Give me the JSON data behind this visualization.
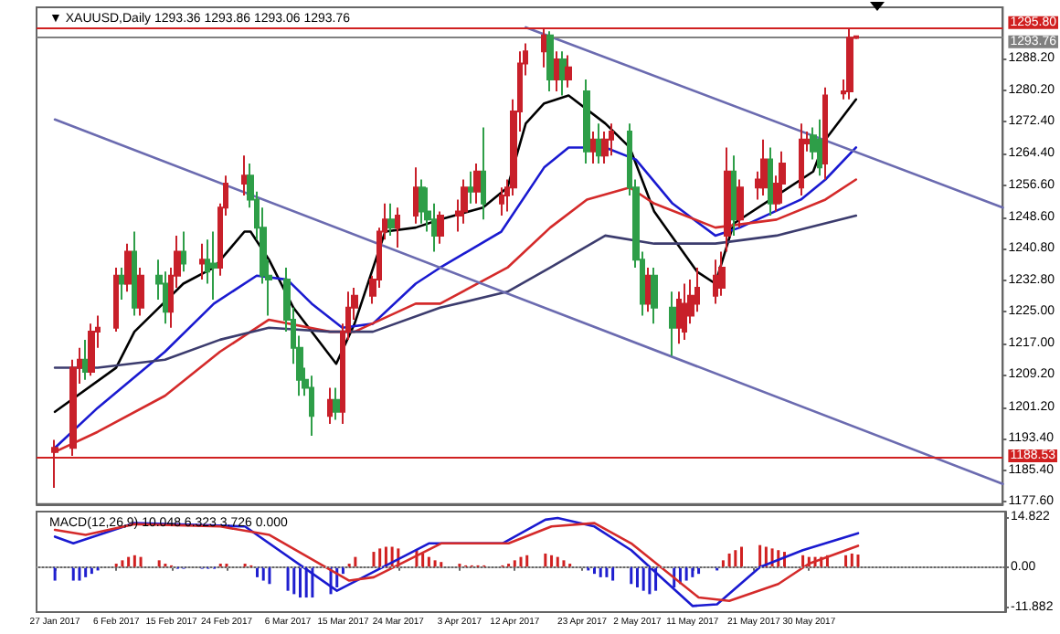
{
  "chart_data": [
    {
      "type": "candlestick",
      "title": "▼ XAUUSD,Daily 1293.36 1293.86 1293.06 1293.76",
      "tick_labels": "y",
      "x": [
        "2017-01-27",
        "2017-01-30",
        "2017-01-31",
        "2017-02-01",
        "2017-02-02",
        "2017-02-03",
        "2017-02-06",
        "2017-02-07",
        "2017-02-08",
        "2017-02-09",
        "2017-02-10",
        "2017-02-13",
        "2017-02-14",
        "2017-02-15",
        "2017-02-16",
        "2017-02-17",
        "2017-02-20",
        "2017-02-21",
        "2017-02-22",
        "2017-02-23",
        "2017-02-24",
        "2017-02-27",
        "2017-02-28",
        "2017-03-01",
        "2017-03-02",
        "2017-03-03",
        "2017-03-06",
        "2017-03-07",
        "2017-03-08",
        "2017-03-09",
        "2017-03-10",
        "2017-03-13",
        "2017-03-14",
        "2017-03-15",
        "2017-03-16",
        "2017-03-17",
        "2017-03-20",
        "2017-03-21",
        "2017-03-22",
        "2017-03-23",
        "2017-03-24",
        "2017-03-27",
        "2017-03-28",
        "2017-03-29",
        "2017-03-30",
        "2017-03-31",
        "2017-04-03",
        "2017-04-04",
        "2017-04-05",
        "2017-04-06",
        "2017-04-07",
        "2017-04-10",
        "2017-04-11",
        "2017-04-12",
        "2017-04-13",
        "2017-04-14",
        "2017-04-17",
        "2017-04-18",
        "2017-04-19",
        "2017-04-20",
        "2017-04-21",
        "2017-04-24",
        "2017-04-25",
        "2017-04-26",
        "2017-04-27",
        "2017-04-28",
        "2017-05-01",
        "2017-05-02",
        "2017-05-03",
        "2017-05-04",
        "2017-05-05",
        "2017-05-08",
        "2017-05-09",
        "2017-05-10",
        "2017-05-11",
        "2017-05-12",
        "2017-05-15",
        "2017-05-16",
        "2017-05-17",
        "2017-05-18",
        "2017-05-19",
        "2017-05-22",
        "2017-05-23",
        "2017-05-24",
        "2017-05-25",
        "2017-05-26",
        "2017-05-29",
        "2017-05-30",
        "2017-05-31",
        "2017-06-01",
        "2017-06-02",
        "2017-06-05",
        "2017-06-06",
        "2017-06-07"
      ],
      "ohlc": [
        [
          1190,
          1193,
          1181,
          1191
        ],
        [
          1191,
          1213,
          1189,
          1211
        ],
        [
          1211,
          1216,
          1207,
          1213
        ],
        [
          1213,
          1218,
          1208,
          1210
        ],
        [
          1210,
          1222,
          1209,
          1220
        ],
        [
          1220,
          1224,
          1216,
          1221
        ],
        [
          1221,
          1236,
          1220,
          1234
        ],
        [
          1234,
          1236,
          1228,
          1232
        ],
        [
          1232,
          1242,
          1230,
          1240
        ],
        [
          1240,
          1245,
          1224,
          1226
        ],
        [
          1226,
          1236,
          1224,
          1234
        ],
        [
          1234,
          1238,
          1228,
          1232
        ],
        [
          1232,
          1235,
          1222,
          1225
        ],
        [
          1225,
          1236,
          1221,
          1234
        ],
        [
          1234,
          1244,
          1231,
          1240
        ],
        [
          1240,
          1245,
          1235,
          1237
        ],
        [
          1237,
          1242,
          1233,
          1238
        ],
        [
          1238,
          1243,
          1232,
          1235
        ],
        [
          1237,
          1245,
          1228,
          1236
        ],
        [
          1236,
          1252,
          1234,
          1251
        ],
        [
          1251,
          1259,
          1249,
          1257
        ],
        [
          1257,
          1264,
          1254,
          1259
        ],
        [
          1259,
          1262,
          1251,
          1253
        ],
        [
          1253,
          1255,
          1243,
          1246
        ],
        [
          1246,
          1251,
          1232,
          1234
        ],
        [
          1234,
          1238,
          1224,
          1233
        ],
        [
          1233,
          1236,
          1220,
          1223
        ],
        [
          1223,
          1226,
          1212,
          1216
        ],
        [
          1216,
          1219,
          1204,
          1208
        ],
        [
          1208,
          1211,
          1204,
          1206
        ],
        [
          1206,
          1209,
          1194,
          1199
        ],
        [
          1199,
          1206,
          1197,
          1203
        ],
        [
          1203,
          1206,
          1198,
          1200
        ],
        [
          1200,
          1222,
          1197,
          1220
        ],
        [
          1220,
          1230,
          1218,
          1226
        ],
        [
          1226,
          1231,
          1223,
          1229
        ],
        [
          1229,
          1234,
          1227,
          1233
        ],
        [
          1233,
          1246,
          1231,
          1245
        ],
        [
          1245,
          1252,
          1243,
          1248
        ],
        [
          1248,
          1252,
          1244,
          1246
        ],
        [
          1246,
          1251,
          1241,
          1249
        ],
        [
          1249,
          1261,
          1247,
          1256
        ],
        [
          1256,
          1258,
          1247,
          1250
        ],
        [
          1250,
          1256,
          1245,
          1248
        ],
        [
          1248,
          1252,
          1240,
          1244
        ],
        [
          1244,
          1250,
          1242,
          1249
        ],
        [
          1249,
          1253,
          1245,
          1250
        ],
        [
          1250,
          1258,
          1247,
          1256
        ],
        [
          1256,
          1260,
          1252,
          1255
        ],
        [
          1255,
          1262,
          1252,
          1260
        ],
        [
          1260,
          1271,
          1248,
          1252
        ],
        [
          1252,
          1256,
          1249,
          1254
        ],
        [
          1254,
          1258,
          1250,
          1256
        ],
        [
          1256,
          1278,
          1254,
          1275
        ],
        [
          1275,
          1290,
          1270,
          1287
        ],
        [
          1287,
          1292,
          1284,
          1290
        ],
        [
          1290,
          1295.8,
          1286,
          1294
        ],
        [
          1294,
          1295,
          1280,
          1283
        ],
        [
          1283,
          1290,
          1280,
          1288
        ],
        [
          1288,
          1290,
          1279,
          1283
        ],
        [
          1283,
          1289,
          1281,
          1286
        ],
        [
          1280,
          1283,
          1262,
          1265
        ],
        [
          1265,
          1270,
          1262,
          1268
        ],
        [
          1268,
          1272,
          1262,
          1264
        ],
        [
          1264,
          1270,
          1262,
          1268
        ],
        [
          1268,
          1272,
          1264,
          1270
        ],
        [
          1270,
          1272,
          1254,
          1256
        ],
        [
          1256,
          1258,
          1236,
          1238
        ],
        [
          1238,
          1240,
          1224,
          1227
        ],
        [
          1227,
          1236,
          1225,
          1234
        ],
        [
          1234,
          1236,
          1222,
          1226
        ],
        [
          1226,
          1230,
          1214,
          1221
        ],
        [
          1221,
          1230,
          1217,
          1228
        ],
        [
          1220,
          1232,
          1218,
          1227
        ],
        [
          1224,
          1233,
          1222,
          1229
        ],
        [
          1227,
          1236,
          1225,
          1231
        ],
        [
          1229,
          1238,
          1227,
          1234
        ],
        [
          1231,
          1240,
          1229,
          1236
        ],
        [
          1244,
          1266,
          1240,
          1260
        ],
        [
          1260,
          1264,
          1244,
          1248
        ],
        [
          1248,
          1258,
          1246,
          1256
        ],
        [
          1256,
          1260,
          1253,
          1258
        ],
        [
          1256,
          1268,
          1254,
          1263
        ],
        [
          1263,
          1266,
          1249,
          1252
        ],
        [
          1252,
          1259,
          1250,
          1257
        ],
        [
          1257,
          1265,
          1252,
          1262
        ],
        [
          1256,
          1272,
          1254,
          1268
        ],
        [
          1267,
          1270,
          1265,
          1268
        ],
        [
          1269,
          1271,
          1263,
          1265
        ],
        [
          1268,
          1273,
          1259,
          1261
        ],
        [
          1262,
          1281,
          1258,
          1279
        ],
        [
          1279.5,
          1283,
          1278,
          1280
        ],
        [
          1280,
          1295.8,
          1278,
          1293.4
        ],
        [
          1293.36,
          1293.86,
          1293.06,
          1293.76
        ]
      ],
      "colors": [
        "#c8202a",
        "#c8202a",
        "#c8202a",
        "#2e9e48",
        "#c8202a",
        "#c8202a",
        "#c8202a",
        "#2e9e48",
        "#c8202a",
        "#2e9e48",
        "#c8202a",
        "#2e9e48",
        "#2e9e48",
        "#c8202a",
        "#c8202a",
        "#2e9e48",
        "#c8202a",
        "#2e9e48",
        "#2e9e48",
        "#c8202a",
        "#c8202a",
        "#c8202a",
        "#2e9e48",
        "#2e9e48",
        "#2e9e48",
        "#2e9e48",
        "#2e9e48",
        "#2e9e48",
        "#2e9e48",
        "#2e9e48",
        "#2e9e48",
        "#c8202a",
        "#2e9e48",
        "#c8202a",
        "#c8202a",
        "#c8202a",
        "#c8202a",
        "#c8202a",
        "#c8202a",
        "#2e9e48",
        "#c8202a",
        "#c8202a",
        "#2e9e48",
        "#2e9e48",
        "#2e9e48",
        "#c8202a",
        "#c8202a",
        "#c8202a",
        "#2e9e48",
        "#c8202a",
        "#2e9e48",
        "#c8202a",
        "#c8202a",
        "#c8202a",
        "#c8202a",
        "#c8202a",
        "#c8202a",
        "#2e9e48",
        "#c8202a",
        "#2e9e48",
        "#c8202a",
        "#2e9e48",
        "#c8202a",
        "#2e9e48",
        "#c8202a",
        "#c8202a",
        "#2e9e48",
        "#2e9e48",
        "#2e9e48",
        "#c8202a",
        "#2e9e48",
        "#2e9e48",
        "#c8202a",
        "#c8202a",
        "#c8202a",
        "#c8202a",
        "#c8202a",
        "#c8202a",
        "#c8202a",
        "#2e9e48",
        "#c8202a",
        "#c8202a",
        "#c8202a",
        "#2e9e48",
        "#c8202a",
        "#c8202a",
        "#c8202a",
        "#c8202a",
        "#2e9e48",
        "#2e9e48",
        "#c8202a",
        "#c8202a",
        "#c8202a",
        "#c8202a"
      ],
      "series": [
        {
          "type": "line",
          "color": "#000000",
          "x": [
            "2017-01-27",
            "2017-02-06",
            "2017-02-09",
            "2017-02-13",
            "2017-02-17",
            "2017-02-22",
            "2017-02-27",
            "2017-02-28",
            "2017-03-03",
            "2017-03-07",
            "2017-03-14",
            "2017-03-17",
            "2017-03-22",
            "2017-03-27",
            "2017-03-31",
            "2017-04-07",
            "2017-04-11",
            "2017-04-14",
            "2017-04-17",
            "2017-04-21",
            "2017-04-27",
            "2017-05-01",
            "2017-05-05",
            "2017-05-12",
            "2017-05-15",
            "2017-05-18",
            "2017-05-25",
            "2017-05-31",
            "2017-06-02",
            "2017-06-07"
          ],
          "values": [
            1200,
            1211,
            1220,
            1226,
            1232,
            1236,
            1245,
            1245,
            1238,
            1226,
            1212,
            1222,
            1245,
            1246,
            1248,
            1251,
            1256,
            1272,
            1277,
            1279,
            1272,
            1266,
            1250,
            1235,
            1232,
            1247,
            1254,
            1260,
            1268,
            1278
          ]
        },
        {
          "type": "line",
          "color": "#1a1ad0",
          "x": [
            "2017-01-27",
            "2017-02-03",
            "2017-02-14",
            "2017-02-22",
            "2017-03-01",
            "2017-03-06",
            "2017-03-10",
            "2017-03-15",
            "2017-03-20",
            "2017-03-27",
            "2017-03-31",
            "2017-04-10",
            "2017-04-17",
            "2017-04-21",
            "2017-04-27",
            "2017-05-02",
            "2017-05-08",
            "2017-05-15",
            "2017-05-19",
            "2017-05-29",
            "2017-06-02",
            "2017-06-07"
          ],
          "values": [
            1191,
            1201,
            1215,
            1227,
            1234,
            1233,
            1227,
            1221,
            1222,
            1232,
            1236,
            1245,
            1261,
            1266,
            1266,
            1263,
            1252,
            1244,
            1246,
            1253,
            1258,
            1266
          ]
        },
        {
          "type": "line",
          "color": "#d42a2a",
          "x": [
            "2017-01-27",
            "2017-02-03",
            "2017-02-14",
            "2017-02-23",
            "2017-03-03",
            "2017-03-13",
            "2017-03-17",
            "2017-03-27",
            "2017-03-31",
            "2017-04-11",
            "2017-04-18",
            "2017-04-24",
            "2017-05-01",
            "2017-05-05",
            "2017-05-15",
            "2017-05-25",
            "2017-06-02",
            "2017-06-07"
          ],
          "values": [
            1190,
            1195,
            1204,
            1215,
            1223,
            1220,
            1220,
            1227,
            1227,
            1236,
            1246,
            1253,
            1256,
            1252,
            1246,
            1248,
            1253,
            1258
          ]
        },
        {
          "type": "line",
          "color": "#3c3c6e",
          "x": [
            "2017-01-27",
            "2017-02-03",
            "2017-02-14",
            "2017-02-23",
            "2017-03-03",
            "2017-03-13",
            "2017-03-20",
            "2017-03-31",
            "2017-04-11",
            "2017-04-18",
            "2017-04-27",
            "2017-05-05",
            "2017-05-15",
            "2017-05-25",
            "2017-06-07"
          ],
          "values": [
            1211,
            1211,
            1213,
            1218,
            1221,
            1220,
            1220,
            1226,
            1230,
            1236,
            1244,
            1242,
            1242,
            1244,
            1249
          ]
        },
        {
          "type": "line",
          "color": "#6b6bb0",
          "x": [
            "2017-01-27",
            "2017-07-01"
          ],
          "values": [
            1273,
            1182
          ]
        },
        {
          "type": "line",
          "color": "#6b6bb0",
          "x": [
            "2017-04-14",
            "2017-07-01"
          ],
          "values": [
            1296,
            1251
          ]
        }
      ],
      "xlim": [
        "2017-01-24",
        "2017-07-01"
      ],
      "ylim": [
        1177,
        1301
      ],
      "yticks": [
        {
          "value": 1177.6,
          "label": "1177.60"
        },
        {
          "value": 1185.4,
          "label": "1185.40"
        },
        {
          "value": 1193.4,
          "label": "1193.40"
        },
        {
          "value": 1201.2,
          "label": "1201.20"
        },
        {
          "value": 1209.2,
          "label": "1209.20"
        },
        {
          "value": 1217.0,
          "label": "1217.00"
        },
        {
          "value": 1225.0,
          "label": "1225.00"
        },
        {
          "value": 1232.8,
          "label": "1232.80"
        },
        {
          "value": 1240.8,
          "label": "1240.80"
        },
        {
          "value": 1248.6,
          "label": "1248.60"
        },
        {
          "value": 1256.6,
          "label": "1256.60"
        },
        {
          "value": 1264.4,
          "label": "1264.40"
        },
        {
          "value": 1272.4,
          "label": "1272.40"
        },
        {
          "value": 1280.2,
          "label": "1280.20"
        },
        {
          "value": 1288.2,
          "label": "1288.20"
        }
      ],
      "ref_lines": [
        {
          "axis": "y",
          "value": 1295.8,
          "label": "1295.80",
          "color": "#d02020"
        },
        {
          "axis": "y",
          "value": 1293.76,
          "label": "1293.76",
          "color": "#808080"
        },
        {
          "axis": "y",
          "value": 1188.53,
          "label": "1188.53",
          "color": "#d02020"
        }
      ]
    },
    {
      "type": "bar",
      "title": "MACD(12,26,9) 10.048 6.323 3.726 0.000",
      "x": [
        "2017-01-27",
        "2017-01-30",
        "2017-01-31",
        "2017-02-01",
        "2017-02-02",
        "2017-02-03",
        "2017-02-06",
        "2017-02-07",
        "2017-02-08",
        "2017-02-09",
        "2017-02-10",
        "2017-02-13",
        "2017-02-14",
        "2017-02-15",
        "2017-02-16",
        "2017-02-17",
        "2017-02-20",
        "2017-02-21",
        "2017-02-22",
        "2017-02-23",
        "2017-02-24",
        "2017-02-27",
        "2017-02-28",
        "2017-03-01",
        "2017-03-02",
        "2017-03-03",
        "2017-03-06",
        "2017-03-07",
        "2017-03-08",
        "2017-03-09",
        "2017-03-10",
        "2017-03-13",
        "2017-03-14",
        "2017-03-15",
        "2017-03-16",
        "2017-03-17",
        "2017-03-20",
        "2017-03-21",
        "2017-03-22",
        "2017-03-23",
        "2017-03-24",
        "2017-03-27",
        "2017-03-28",
        "2017-03-29",
        "2017-03-30",
        "2017-03-31",
        "2017-04-03",
        "2017-04-04",
        "2017-04-05",
        "2017-04-06",
        "2017-04-07",
        "2017-04-10",
        "2017-04-11",
        "2017-04-12",
        "2017-04-13",
        "2017-04-14",
        "2017-04-17",
        "2017-04-18",
        "2017-04-19",
        "2017-04-20",
        "2017-04-21",
        "2017-04-24",
        "2017-04-25",
        "2017-04-26",
        "2017-04-27",
        "2017-04-28",
        "2017-05-01",
        "2017-05-02",
        "2017-05-03",
        "2017-05-04",
        "2017-05-05",
        "2017-05-08",
        "2017-05-09",
        "2017-05-10",
        "2017-05-11",
        "2017-05-12",
        "2017-05-15",
        "2017-05-16",
        "2017-05-17",
        "2017-05-18",
        "2017-05-19",
        "2017-05-22",
        "2017-05-23",
        "2017-05-24",
        "2017-05-25",
        "2017-05-26",
        "2017-05-29",
        "2017-05-30",
        "2017-05-31",
        "2017-06-01",
        "2017-06-02",
        "2017-06-05",
        "2017-06-06",
        "2017-06-07"
      ],
      "values": [
        -4,
        -4,
        -4,
        -3,
        -2,
        -1,
        1,
        2,
        3,
        3.5,
        3,
        2,
        1,
        0.5,
        -0.5,
        -0.5,
        -0.5,
        -0.5,
        -0.5,
        1,
        1,
        1,
        0.5,
        -3,
        -4,
        -5,
        -7,
        -8,
        -9,
        -9,
        -9,
        -8,
        -6,
        -2,
        1,
        3,
        4.5,
        5.5,
        6,
        6,
        5.5,
        5,
        4,
        3,
        2,
        1.5,
        1,
        0.5,
        0.5,
        0.5,
        0.5,
        0.5,
        1,
        2,
        3,
        3.5,
        4,
        3.5,
        3,
        2,
        1,
        -1,
        -2,
        -3,
        -3,
        -4,
        -5,
        -6,
        -7,
        -8,
        -7,
        -6,
        -5,
        -4,
        -3,
        -2,
        -1,
        2,
        4,
        5,
        6,
        6.5,
        6,
        5.5,
        5,
        4.5,
        3.5,
        3,
        3,
        3,
        3.5,
        3.5,
        4,
        3.7
      ],
      "colors": [
        "#1f1fcf",
        "#1f1fcf",
        "#1f1fcf",
        "#1f1fcf",
        "#1f1fcf",
        "#1f1fcf",
        "#d02020",
        "#d02020",
        "#d02020",
        "#d02020",
        "#d02020",
        "#d02020",
        "#d02020",
        "#d02020",
        "#1f1fcf",
        "#1f1fcf",
        "#1f1fcf",
        "#1f1fcf",
        "#1f1fcf",
        "#d02020",
        "#d02020",
        "#d02020",
        "#d02020",
        "#1f1fcf",
        "#1f1fcf",
        "#1f1fcf",
        "#1f1fcf",
        "#1f1fcf",
        "#1f1fcf",
        "#1f1fcf",
        "#1f1fcf",
        "#1f1fcf",
        "#1f1fcf",
        "#1f1fcf",
        "#d02020",
        "#d02020",
        "#d02020",
        "#d02020",
        "#d02020",
        "#d02020",
        "#d02020",
        "#d02020",
        "#d02020",
        "#d02020",
        "#d02020",
        "#d02020",
        "#d02020",
        "#d02020",
        "#d02020",
        "#d02020",
        "#d02020",
        "#d02020",
        "#d02020",
        "#d02020",
        "#d02020",
        "#d02020",
        "#d02020",
        "#d02020",
        "#d02020",
        "#d02020",
        "#d02020",
        "#1f1fcf",
        "#1f1fcf",
        "#1f1fcf",
        "#1f1fcf",
        "#1f1fcf",
        "#1f1fcf",
        "#1f1fcf",
        "#1f1fcf",
        "#1f1fcf",
        "#1f1fcf",
        "#1f1fcf",
        "#1f1fcf",
        "#1f1fcf",
        "#1f1fcf",
        "#1f1fcf",
        "#1f1fcf",
        "#d02020",
        "#d02020",
        "#d02020",
        "#d02020",
        "#d02020",
        "#d02020",
        "#d02020",
        "#d02020",
        "#d02020",
        "#d02020",
        "#d02020",
        "#d02020",
        "#d02020",
        "#d02020",
        "#d02020",
        "#d02020",
        "#d02020"
      ],
      "series": [
        {
          "type": "line",
          "color": "#1a1ad0",
          "x": [
            "2017-01-27",
            "2017-01-30",
            "2017-02-09",
            "2017-02-27",
            "2017-03-14",
            "2017-03-29",
            "2017-04-10",
            "2017-04-17",
            "2017-04-19",
            "2017-04-25",
            "2017-05-01",
            "2017-05-11",
            "2017-05-15",
            "2017-05-22",
            "2017-05-29",
            "2017-06-07"
          ],
          "values": [
            9,
            7,
            13,
            12,
            -7,
            7,
            7,
            14,
            14.5,
            12,
            5,
            -11.5,
            -11,
            0,
            5,
            10
          ]
        },
        {
          "type": "line",
          "color": "#d42a2a",
          "x": [
            "2017-01-27",
            "2017-02-01",
            "2017-02-09",
            "2017-02-23",
            "2017-03-03",
            "2017-03-16",
            "2017-03-20",
            "2017-03-31",
            "2017-04-11",
            "2017-04-18",
            "2017-04-25",
            "2017-05-01",
            "2017-05-12",
            "2017-05-17",
            "2017-05-25",
            "2017-05-30",
            "2017-06-07"
          ],
          "values": [
            11,
            9.5,
            12.7,
            12,
            9.5,
            -4,
            -3,
            7,
            7,
            12,
            13,
            7,
            -9,
            -10,
            -5,
            1,
            6.3
          ]
        }
      ],
      "xlim": [
        "2017-01-24",
        "2017-07-01"
      ],
      "ylim": [
        -13.3,
        16.4
      ],
      "yticks": [
        14.822,
        {
          "value": 0,
          "label": "0.00"
        },
        -11.882
      ],
      "xticks": [
        {
          "value": "2017-01-27",
          "label": "27 Jan 2017"
        },
        {
          "value": "2017-02-06",
          "label": "6 Feb 2017"
        },
        {
          "value": "2017-02-15",
          "label": "15 Feb 2017"
        },
        {
          "value": "2017-02-24",
          "label": "24 Feb 2017"
        },
        {
          "value": "2017-03-06",
          "label": "6 Mar 2017"
        },
        {
          "value": "2017-03-15",
          "label": "15 Mar 2017"
        },
        {
          "value": "2017-03-24",
          "label": "24 Mar 2017"
        },
        {
          "value": "2017-04-03",
          "label": "3 Apr 2017"
        },
        {
          "value": "2017-04-12",
          "label": "12 Apr 2017"
        },
        {
          "value": "2017-04-23",
          "label": "23 Apr 2017"
        },
        {
          "value": "2017-05-02",
          "label": "2 May 2017"
        },
        {
          "value": "2017-05-11",
          "label": "11 May 2017"
        },
        {
          "value": "2017-05-21",
          "label": "21 May 2017"
        },
        {
          "value": "2017-05-30",
          "label": "30 May 2017"
        }
      ],
      "ref_lines": [
        {
          "axis": "y",
          "value": 0,
          "color": "#aaaaaa",
          "line_style": "dotted"
        }
      ]
    }
  ]
}
